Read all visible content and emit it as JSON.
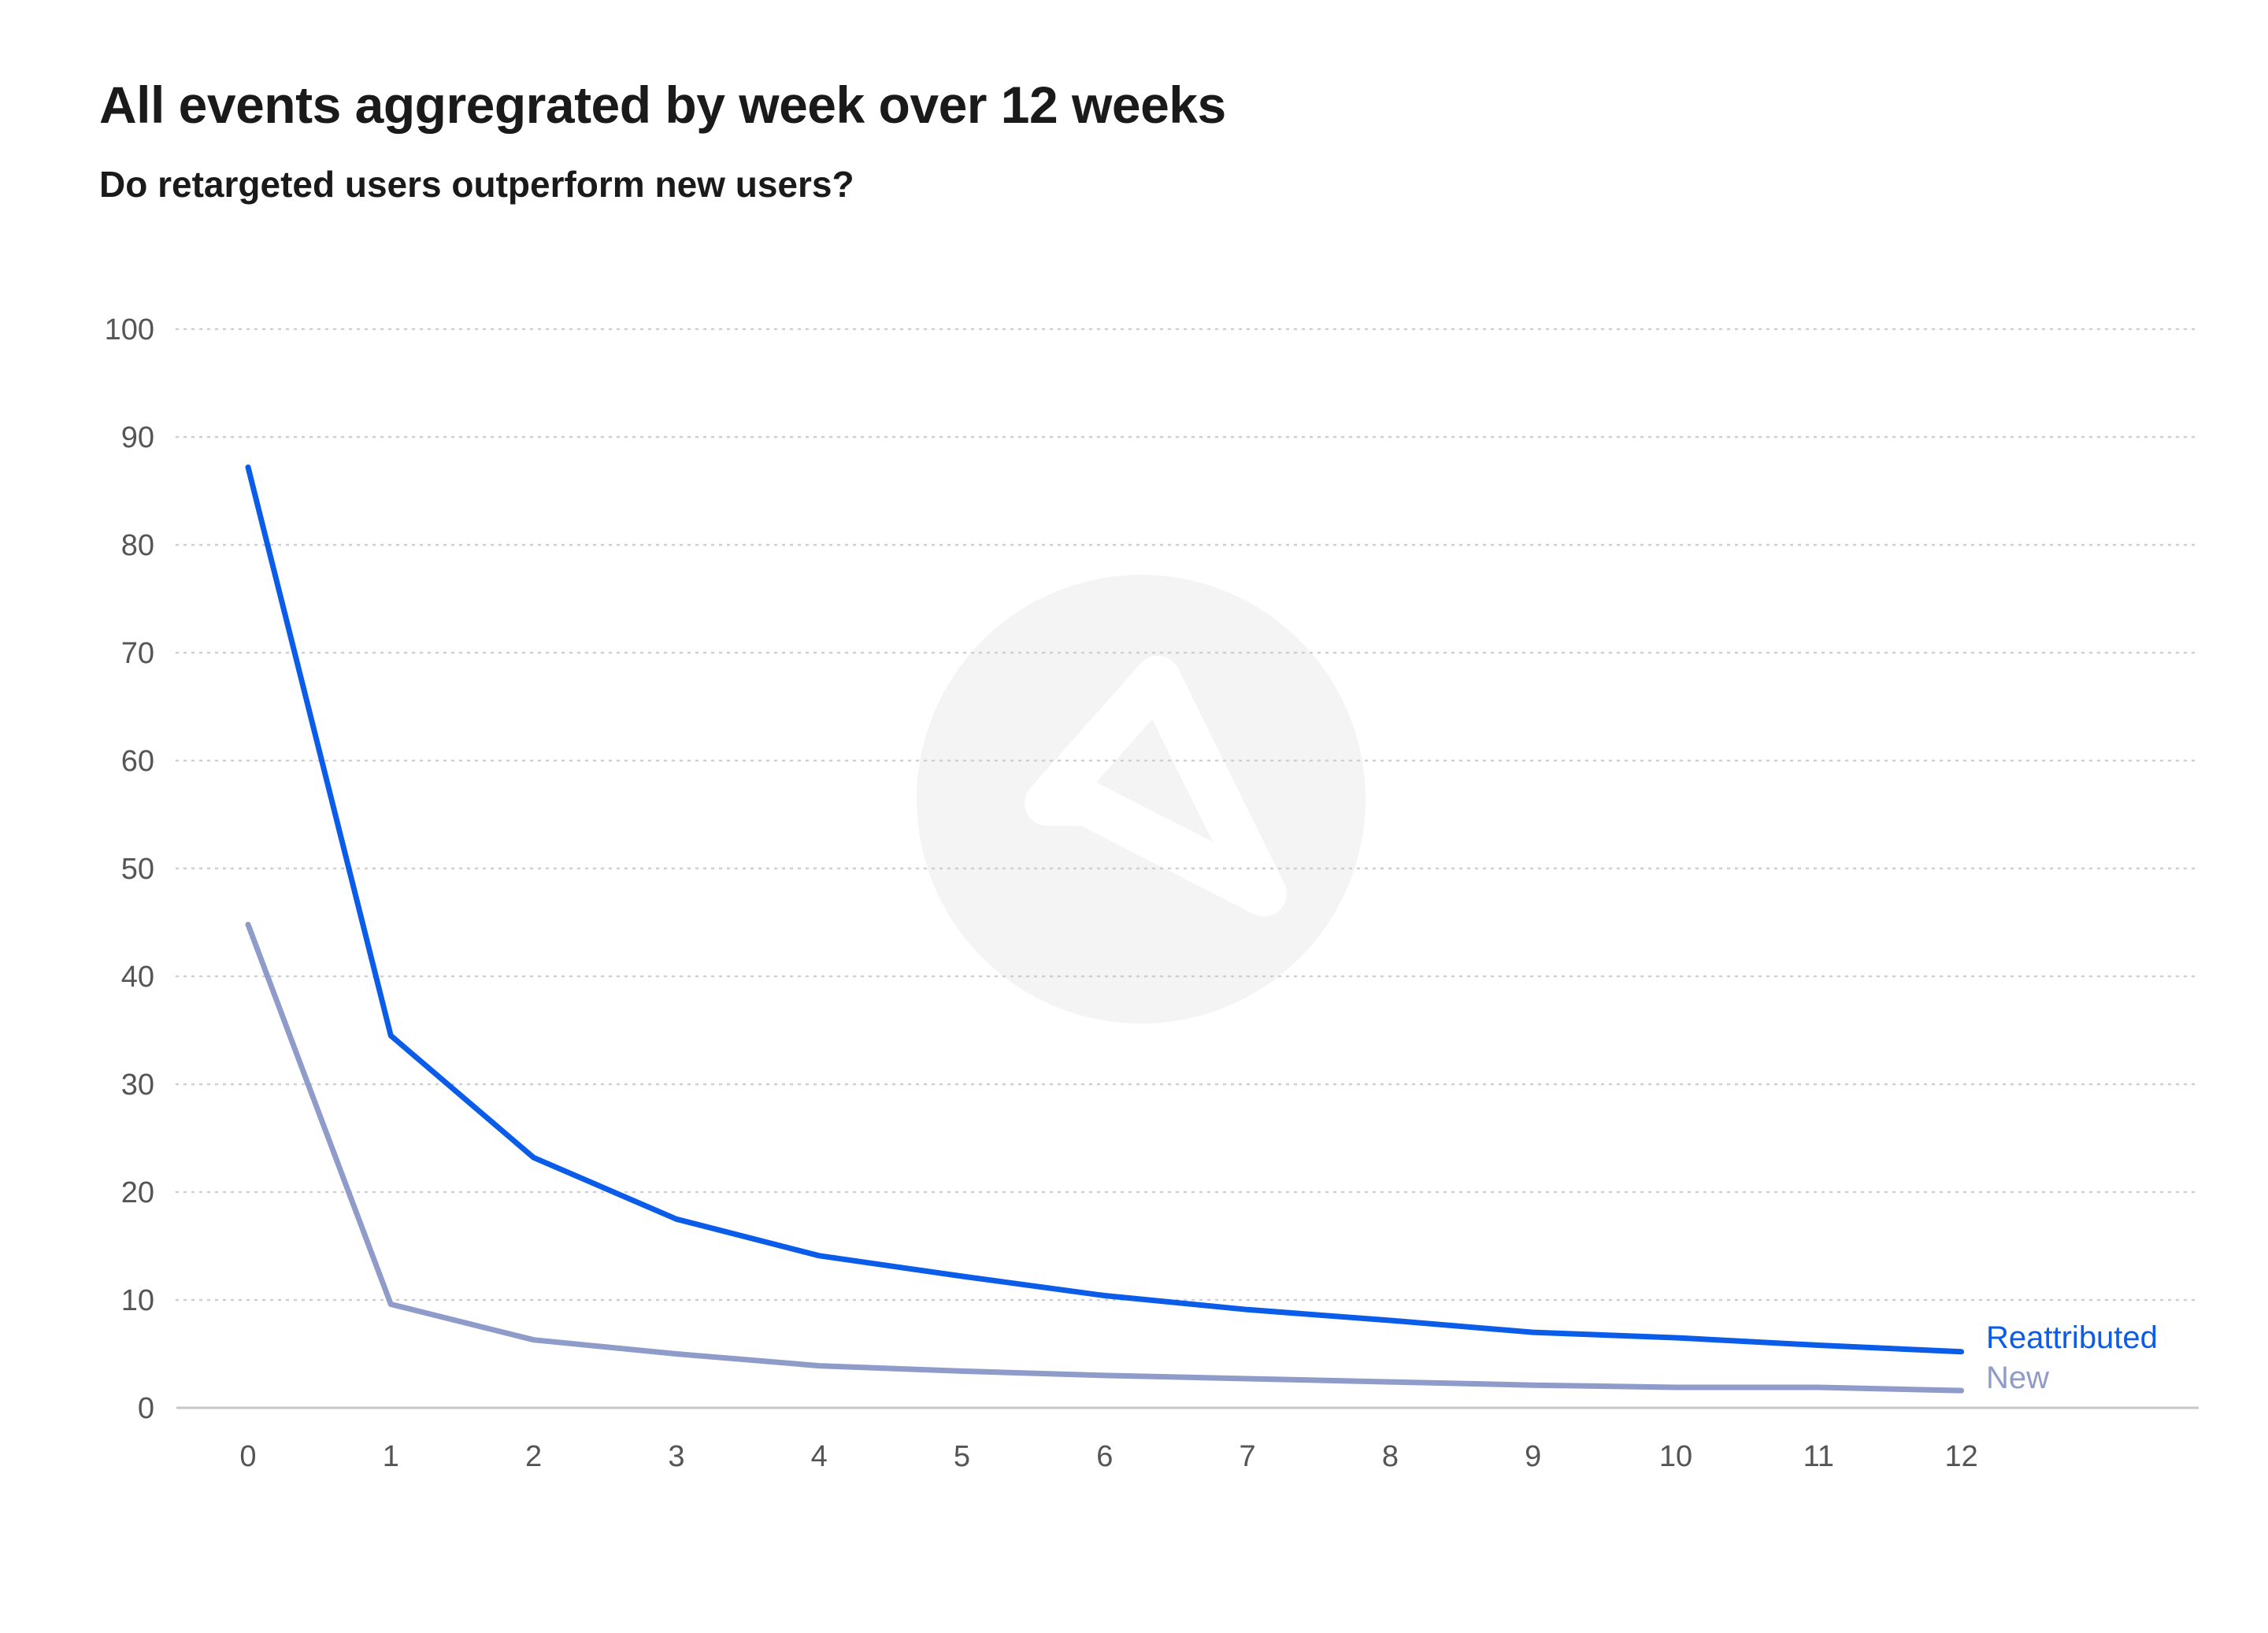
{
  "header": {
    "title": "All events aggregrated by week over 12 weeks",
    "subtitle": "Do retargeted users outperform new users?"
  },
  "watermark": {
    "icon": "adjust-logo-icon",
    "color": "#f4f4f4"
  },
  "chart_data": {
    "type": "line",
    "title": "All events aggregrated by week over 12 weeks",
    "subtitle": "Do retargeted users outperform new users?",
    "xlabel": "",
    "ylabel": "",
    "x": [
      0,
      1,
      2,
      3,
      4,
      5,
      6,
      7,
      8,
      9,
      10,
      11,
      12
    ],
    "xticks": [
      "0",
      "1",
      "2",
      "3",
      "4",
      "5",
      "6",
      "7",
      "8",
      "9",
      "10",
      "11",
      "12"
    ],
    "yticks": [
      "0",
      "10",
      "20",
      "30",
      "40",
      "50",
      "60",
      "70",
      "80",
      "90",
      "100"
    ],
    "ylim": [
      0,
      100
    ],
    "grid": "horizontal-dotted",
    "legend": "inline-right",
    "series": [
      {
        "name": "Reattributed",
        "color": "#0b5ce8",
        "values": [
          87.2,
          34.5,
          23.2,
          17.5,
          14.1,
          12.2,
          10.4,
          9.1,
          8.1,
          7.0,
          6.5,
          5.8,
          5.2
        ]
      },
      {
        "name": "New",
        "color": "#8f9bc8",
        "values": [
          44.8,
          9.6,
          6.3,
          5.0,
          3.9,
          3.4,
          3.0,
          2.7,
          2.4,
          2.1,
          1.9,
          1.9,
          1.6
        ]
      }
    ]
  }
}
